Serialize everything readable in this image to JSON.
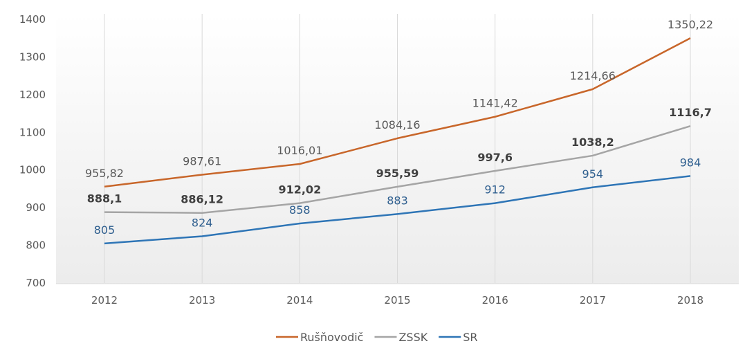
{
  "chart_data": {
    "type": "line",
    "title": "",
    "xlabel": "",
    "ylabel": "",
    "ylim": [
      700,
      1400
    ],
    "yticks": [
      700,
      800,
      900,
      1000,
      1100,
      1200,
      1300,
      1400
    ],
    "grid": "vertical",
    "legend_placement": "bottom",
    "categories": [
      "2012",
      "2013",
      "2014",
      "2015",
      "2016",
      "2017",
      "2018"
    ],
    "series": [
      {
        "name": "Rušňovodič",
        "color": "#c8662a",
        "label_color": "#595959",
        "values": [
          955.82,
          987.61,
          1016.01,
          1084.16,
          1141.42,
          1214.66,
          1350.22
        ],
        "labels": [
          "955,82",
          "987,61",
          "1016,01",
          "1084,16",
          "1141,42",
          "1214,66",
          "1350,22"
        ]
      },
      {
        "name": "ZSSK",
        "color": "#a5a5a5",
        "label_color": "#404040",
        "values": [
          888.1,
          886.12,
          912.02,
          955.59,
          997.6,
          1038.2,
          1116.7
        ],
        "labels": [
          "888,1",
          "886,12",
          "912,02",
          "955,59",
          "997,6",
          "1038,2",
          "1116,7"
        ]
      },
      {
        "name": "SR",
        "color": "#2e75b6",
        "label_color": "#2f5f8f",
        "values": [
          805,
          824,
          858,
          883,
          912,
          954,
          984
        ],
        "labels": [
          "805",
          "824",
          "858",
          "883",
          "912",
          "954",
          "984"
        ]
      }
    ]
  }
}
